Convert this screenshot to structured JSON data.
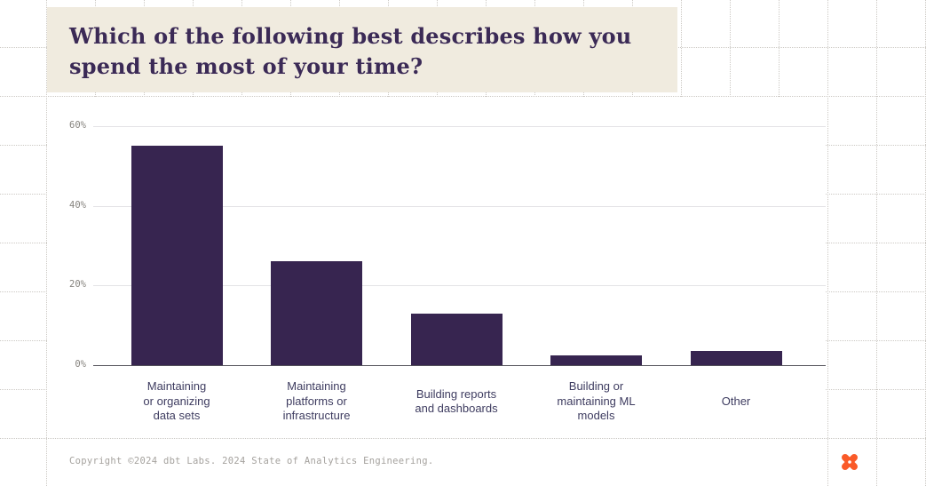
{
  "page": {
    "background": "#FFFFFF"
  },
  "title": {
    "text": "Which of the following best describes how you\nspend the most of your time?",
    "bg_color": "#F0EBDF",
    "text_color": "#3B2A56"
  },
  "chart_data": {
    "type": "bar",
    "title": "Which of the following best describes how you spend the most of your time?",
    "categories": [
      "Maintaining or organizing data sets",
      "Maintaining platforms or infrastructure",
      "Building reports and dashboards",
      "Building or maintaining ML models",
      "Other"
    ],
    "category_display": [
      "Maintaining\nor organizing\ndata sets",
      "Maintaining\nplatforms or\ninfrastructure",
      "Building reports\nand dashboards",
      "Building or\nmaintaining ML\nmodels",
      "Other"
    ],
    "values": [
      55,
      26,
      13,
      2.5,
      3.5
    ],
    "unit": "%",
    "yticks": [
      0,
      20,
      40,
      60
    ],
    "ytick_labels": [
      "0%",
      "20%",
      "40%",
      "60%"
    ],
    "ylim": [
      0,
      60
    ],
    "xlabel": "",
    "ylabel": "",
    "grid": true,
    "legend": false,
    "bar_color": "#372550",
    "gridline_color": "#E4E3E6",
    "axis_color": "#54525A",
    "tick_label_color": "#87847F",
    "category_label_color": "#3E3C60"
  },
  "footer": {
    "copyright": "Copyright ©2024 dbt Labs. 2024 State of Analytics Engineering.",
    "logo": {
      "name": "dbt-logo",
      "color": "#FA5A28"
    }
  },
  "background_grid": {
    "dot_color": "#CCC9C4"
  }
}
